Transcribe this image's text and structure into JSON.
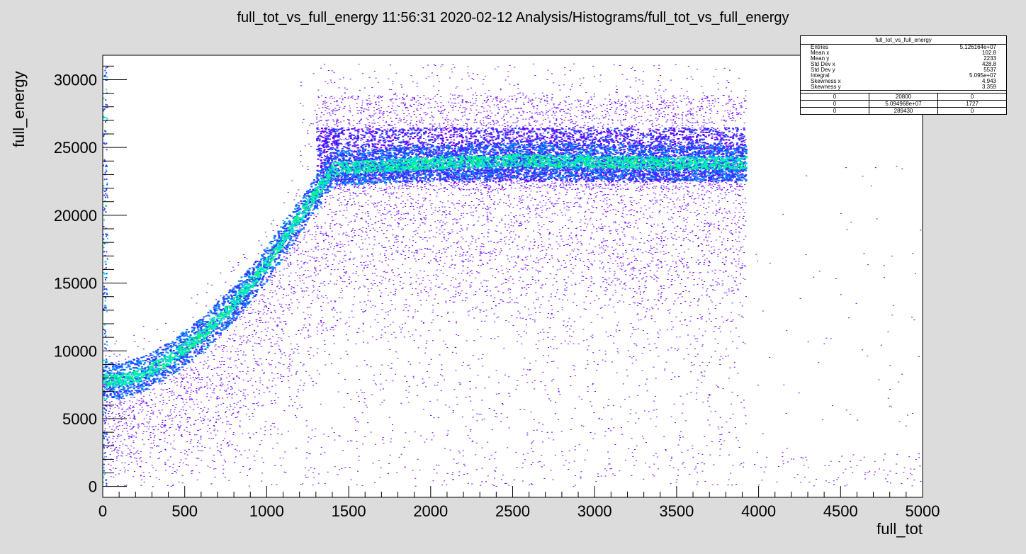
{
  "page_title": "full_tot_vs_full_energy  11:56:31  2020-02-12  Analysis/Histograms/full_tot_vs_full_energy",
  "chart_data": {
    "type": "heatmap",
    "xlabel": "full_tot",
    "ylabel": "full_energy",
    "xlim": [
      0,
      5000
    ],
    "ylim": [
      -800,
      31800
    ],
    "x_ticks": [
      "0",
      "500",
      "1000",
      "1500",
      "2000",
      "2500",
      "3000",
      "3500",
      "4000",
      "4500",
      "5000"
    ],
    "y_ticks": [
      "0",
      "5000",
      "10000",
      "15000",
      "20000",
      "25000",
      "30000"
    ],
    "colormap": [
      "#6a00ff",
      "#2a3cff",
      "#0090ff",
      "#00e8d0",
      "#00ff80"
    ],
    "main_band": [
      {
        "x": 0,
        "y": 8000
      },
      {
        "x": 100,
        "y": 7800
      },
      {
        "x": 250,
        "y": 8400
      },
      {
        "x": 400,
        "y": 9400
      },
      {
        "x": 600,
        "y": 11200
      },
      {
        "x": 800,
        "y": 13600
      },
      {
        "x": 1000,
        "y": 16500
      },
      {
        "x": 1200,
        "y": 20000
      },
      {
        "x": 1400,
        "y": 23500
      },
      {
        "x": 2000,
        "y": 23900
      },
      {
        "x": 2500,
        "y": 24100
      },
      {
        "x": 3000,
        "y": 24000
      },
      {
        "x": 3500,
        "y": 23900
      },
      {
        "x": 3920,
        "y": 23900
      }
    ],
    "plateau_energy_range": [
      22500,
      26500
    ],
    "plateau_tot_range": [
      1300,
      3920
    ]
  },
  "stats": {
    "title": "full_tot_vs_full_energy",
    "rows": [
      {
        "label": "Entries",
        "value": "5.126164e+07"
      },
      {
        "label": "Mean x",
        "value": "102.8"
      },
      {
        "label": "Mean y",
        "value": "2233"
      },
      {
        "label": "Std Dev x",
        "value": "428.8"
      },
      {
        "label": "Std Dev y",
        "value": "5537"
      },
      {
        "label": "Integral",
        "value": "5.095e+07"
      },
      {
        "label": "Skewness x",
        "value": "4.943"
      },
      {
        "label": "Skewness y",
        "value": "3.359"
      }
    ],
    "grid": [
      [
        "0",
        "20800",
        "0"
      ],
      [
        "0",
        "5.094968e+07",
        "1727"
      ],
      [
        "0",
        "289430",
        "0"
      ]
    ]
  }
}
